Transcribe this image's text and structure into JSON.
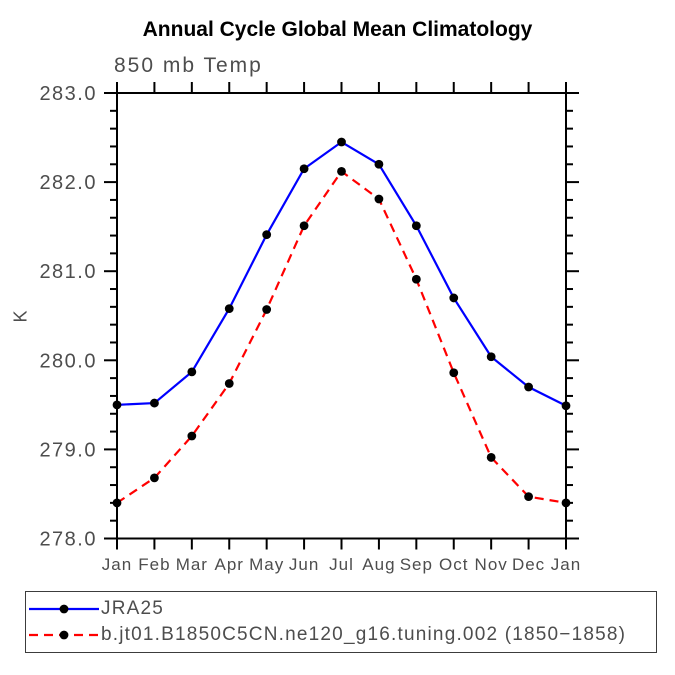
{
  "chart_data": {
    "type": "line",
    "title": "Annual Cycle Global Mean Climatology",
    "subtitle": "850 mb Temp",
    "ylabel": "K",
    "xlabel": "",
    "categories": [
      "Jan",
      "Feb",
      "Mar",
      "Apr",
      "May",
      "Jun",
      "Jul",
      "Aug",
      "Sep",
      "Oct",
      "Nov",
      "Dec",
      "Jan"
    ],
    "ylim": [
      278.0,
      283.0
    ],
    "ytick_step_major": 1.0,
    "ytick_step_minor": 0.2,
    "ytick_labels": [
      "278.0",
      "279.0",
      "280.0",
      "281.0",
      "282.0",
      "283.0"
    ],
    "grid": false,
    "legend_position": "framed box below plot, bottom-left",
    "axis_color": "#000000",
    "label_color": "#4d4d4d",
    "series": [
      {
        "name": "JRA25",
        "color": "#0000ff",
        "line_style": "solid",
        "marker": "filled-circle",
        "marker_color": "#000000",
        "values": [
          279.5,
          279.52,
          279.87,
          280.58,
          281.41,
          282.15,
          282.45,
          282.2,
          281.51,
          280.7,
          280.04,
          279.7,
          279.49
        ]
      },
      {
        "name": "b.jt01.B1850C5CN.ne120_g16.tuning.002 (1850−1858)",
        "color": "#ff0000",
        "line_style": "dashed",
        "marker": "filled-circle",
        "marker_color": "#000000",
        "values": [
          278.4,
          278.68,
          279.15,
          279.74,
          280.57,
          281.51,
          282.12,
          281.81,
          280.91,
          279.86,
          278.91,
          278.47,
          278.4
        ]
      }
    ]
  }
}
